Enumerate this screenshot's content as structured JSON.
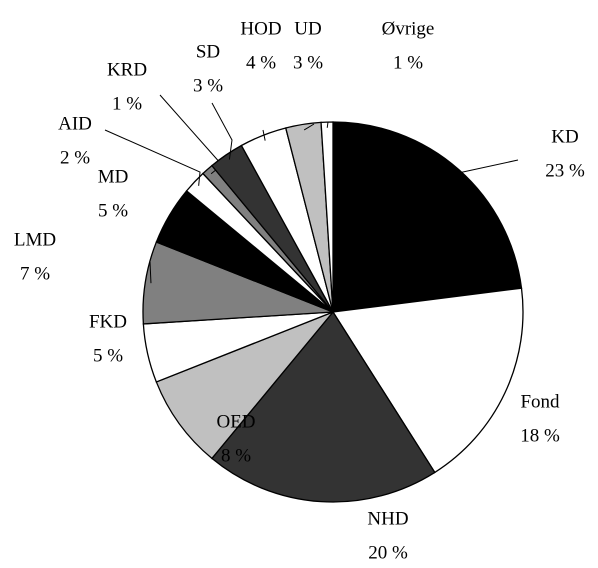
{
  "chart_data": {
    "type": "pie",
    "categories": [
      "KD",
      "Fond",
      "NHD",
      "OED",
      "FKD",
      "LMD",
      "MD",
      "AID",
      "KRD",
      "SD",
      "HOD",
      "UD",
      "Øvrige"
    ],
    "values": [
      23,
      18,
      20,
      8,
      5,
      7,
      5,
      2,
      1,
      3,
      4,
      3,
      1
    ],
    "value_labels": [
      "23 %",
      "18 %",
      "20 %",
      "8 %",
      "5 %",
      "7 %",
      "5 %",
      "2 %",
      "1 %",
      "3 %",
      "4 %",
      "3 %",
      "1 %"
    ],
    "colors": [
      "#000000",
      "#ffffff",
      "#333333",
      "#c0c0c0",
      "#ffffff",
      "#808080",
      "#000000",
      "#ffffff",
      "#808080",
      "#333333",
      "#ffffff",
      "#c0c0c0",
      "#ffffff"
    ]
  }
}
